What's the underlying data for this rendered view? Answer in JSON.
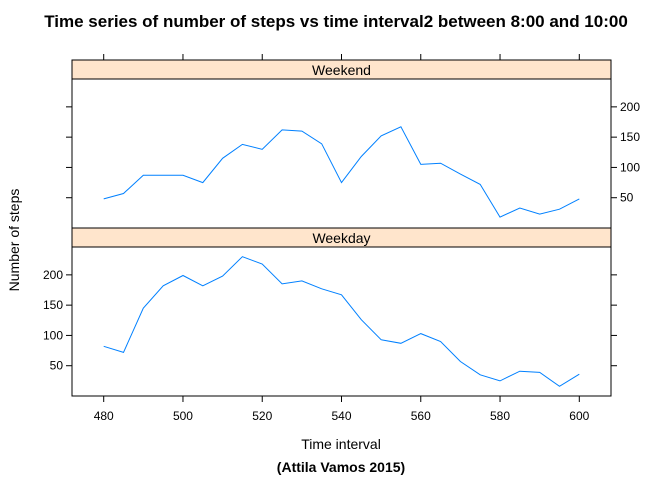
{
  "chart_data": {
    "type": "line",
    "title": "Time series of number of steps vs time interval2 between 8:00 and 10:00",
    "xlabel": "Time interval",
    "ylabel": "Number of steps",
    "caption": "(Attila Vamos 2015)",
    "xlim": [
      472,
      608
    ],
    "ylim": [
      0,
      246
    ],
    "x_ticks": [
      480,
      500,
      520,
      540,
      560,
      580,
      600
    ],
    "y_ticks": [
      50,
      100,
      150,
      200
    ],
    "grid": false,
    "strip_color": "#ffe5cc",
    "line_color": "#0080ff",
    "x": [
      480,
      485,
      490,
      495,
      500,
      505,
      510,
      515,
      520,
      525,
      530,
      535,
      540,
      545,
      550,
      555,
      560,
      565,
      570,
      575,
      580,
      585,
      590,
      595,
      600
    ],
    "panels": [
      {
        "name": "Weekend",
        "values": [
          48,
          57,
          87,
          87,
          87,
          75,
          115,
          138,
          130,
          162,
          160,
          139,
          75,
          118,
          152,
          167,
          105,
          107,
          89,
          72,
          18,
          33,
          23,
          31,
          48
        ]
      },
      {
        "name": "Weekday",
        "values": [
          82,
          72,
          145,
          182,
          199,
          182,
          198,
          230,
          218,
          185,
          190,
          177,
          167,
          126,
          93,
          87,
          103,
          90,
          57,
          35,
          25,
          41,
          39,
          16,
          36
        ]
      }
    ]
  }
}
